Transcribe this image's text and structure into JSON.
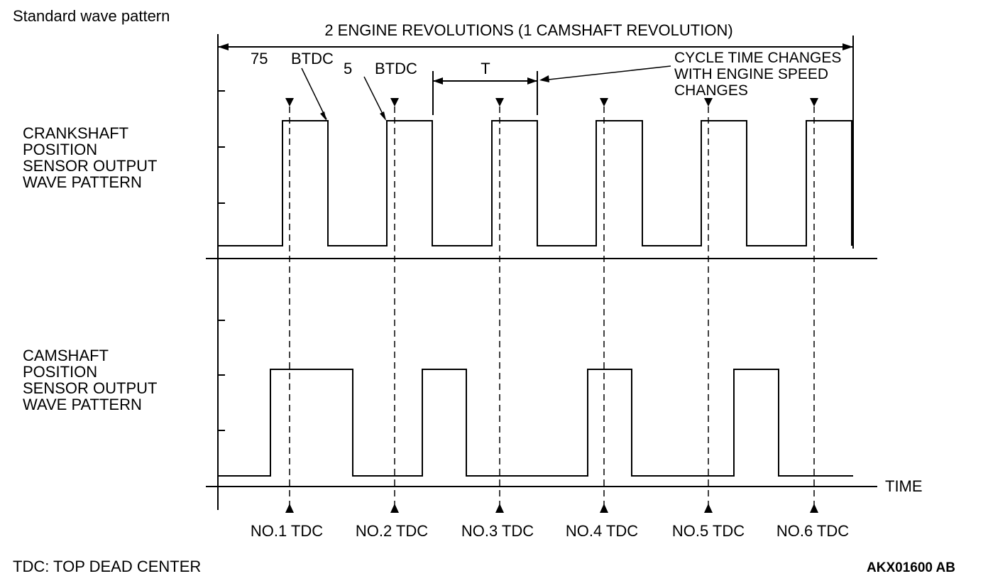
{
  "header": {
    "caption": "Standard wave pattern"
  },
  "span_label": "2 ENGINE REVOLUTIONS (1 CAMSHAFT REVOLUTION)",
  "annotations": {
    "deg75": "75",
    "btdc1": "BTDC",
    "deg5": "5",
    "btdc2": "BTDC",
    "period": "T",
    "cycle_note": [
      "CYCLE TIME CHANGES",
      "WITH ENGINE SPEED",
      "CHANGES"
    ]
  },
  "signals": {
    "crankshaft": {
      "label": [
        "CRANKSHAFT",
        "POSITION",
        "SENSOR OUTPUT",
        "WAVE PATTERN"
      ]
    },
    "camshaft": {
      "label": [
        "CAMSHAFT",
        "POSITION",
        "SENSOR OUTPUT",
        "WAVE PATTERN"
      ]
    }
  },
  "time_axis_label": "TIME",
  "tdc_markers": [
    "NO.1 TDC",
    "NO.2 TDC",
    "NO.3 TDC",
    "NO.4 TDC",
    "NO.5 TDC",
    "NO.6 TDC"
  ],
  "footer": {
    "legend": "TDC: TOP DEAD CENTER",
    "figure_code": "AKX01600 AB"
  }
}
